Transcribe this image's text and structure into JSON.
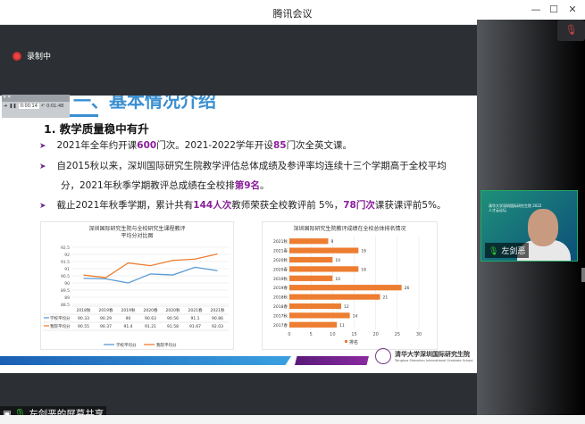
{
  "window": {
    "title": "腾讯会议",
    "minimize": "—",
    "maximize": "☐",
    "close": "✕"
  },
  "recording": {
    "label": "录制中"
  },
  "mic_status": {
    "icon": "mic-muted-icon"
  },
  "player": {
    "elapsed": "0:00:14",
    "total": "0:01:48"
  },
  "slide": {
    "title": "一、基本情况介绍",
    "heading": "1. 教学质量稳中有升",
    "bullets": [
      {
        "parts": [
          "2021年全年约开课",
          "600",
          "门次。2021-2022学年开设",
          "85",
          "门次全英文课。"
        ]
      },
      {
        "parts": [
          "自2015秋以来，深圳国际研究生院教学评估总体成绩及参评率均连续十三个学期高于全校平均分，2021年秋季学期教评总成绩在全校排",
          "第9名",
          "。"
        ]
      },
      {
        "parts": [
          "截止2021年秋季学期，累计共有",
          "144人次",
          "教师荣获全校教评前 5%，",
          "78门次",
          "课获课评前5%。"
        ]
      }
    ],
    "logo": {
      "name": "清华大学深圳国际研究生院",
      "subtitle": "Tsinghua Shenzhen International Graduate School"
    }
  },
  "chart_data": [
    {
      "type": "line",
      "title": "深圳国际研究生院与全校研究生课程教评平均分对比图",
      "categories": [
        "2018秋",
        "2019春",
        "2019秋",
        "2020春",
        "2020秋",
        "2021春",
        "2021秋"
      ],
      "ylim": [
        88.5,
        92.5
      ],
      "yticks": [
        88.5,
        89,
        89.5,
        90,
        90.5,
        91,
        91.5,
        92,
        92.5
      ],
      "grid": true,
      "legend": "bottom",
      "series": [
        {
          "name": "学校平均分",
          "color": "#5b9bd5",
          "values": [
            90.33,
            90.29,
            90,
            90.63,
            90.56,
            91.1,
            90.86
          ],
          "labels": [
            "90.33",
            "90.29",
            "90",
            "90.63",
            "90.56",
            "91.1",
            "90.86"
          ]
        },
        {
          "name": "我院平均分",
          "color": "#ed7d31",
          "values": [
            90.55,
            90.37,
            91.4,
            91.21,
            91.58,
            91.67,
            92.03
          ],
          "labels": [
            "90.55",
            "90.37",
            "91.4",
            "91.21",
            "91.58",
            "91.67",
            "92.03"
          ]
        }
      ]
    },
    {
      "type": "bar",
      "orientation": "horizontal",
      "title": "深圳国际研究生院教评成绩在全校总体排名情况",
      "categories": [
        "2021秋",
        "2021春",
        "2020秋",
        "2020春",
        "2019秋",
        "2019春",
        "2018秋",
        "2018春",
        "2017秋",
        "2017春"
      ],
      "values": [
        9,
        16,
        10,
        16,
        10,
        26,
        21,
        12,
        14,
        11
      ],
      "xlim": [
        0,
        30
      ],
      "xticks": [
        0,
        5,
        10,
        15,
        20,
        25,
        30
      ],
      "series_name": "排名",
      "color": "#ed7d31",
      "legend": "bottom",
      "grid": true
    }
  ],
  "video": {
    "participant": "左剑恶",
    "slide_text": "清华大学深圳国际研究生院 2022 人才云论坛",
    "subtitle": "2022 人才云论坛"
  },
  "share": {
    "label": "左剑恶的屏幕共享"
  }
}
